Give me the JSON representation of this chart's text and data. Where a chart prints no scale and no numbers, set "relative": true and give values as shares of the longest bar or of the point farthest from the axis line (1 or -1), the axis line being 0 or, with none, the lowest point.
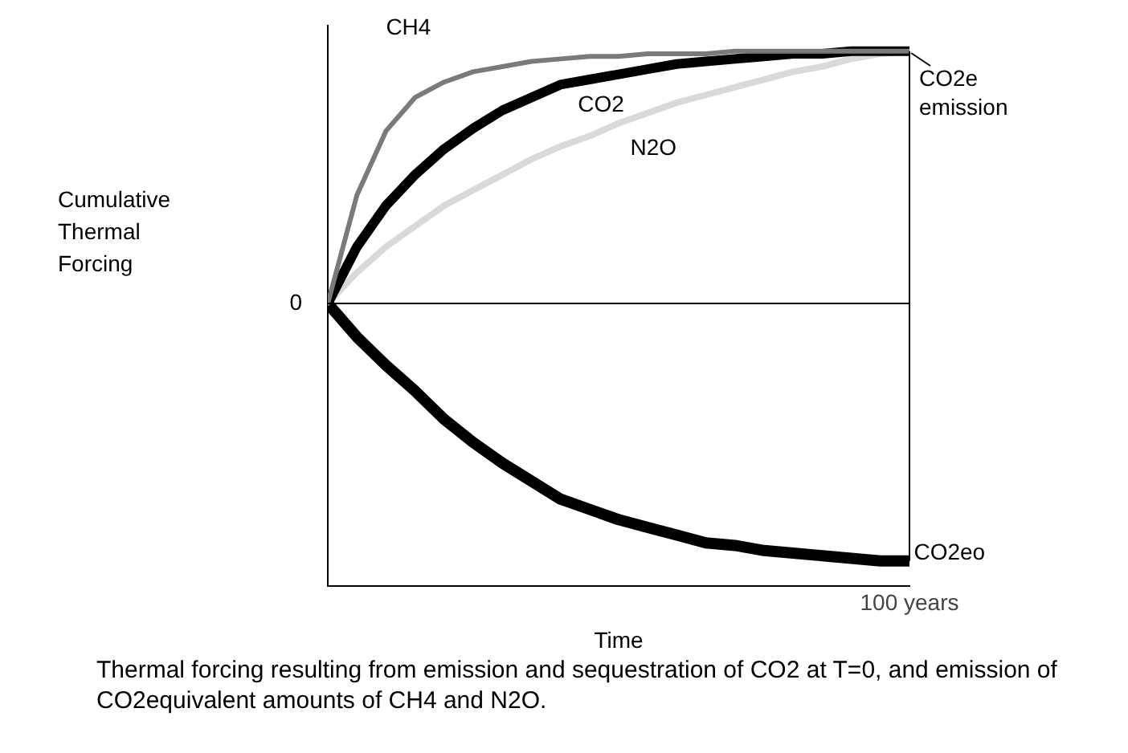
{
  "chart_data": {
    "type": "line",
    "relative": true,
    "xlabel": "Time",
    "categories": [
      null,
      null,
      null,
      null,
      null,
      null,
      null,
      null,
      null,
      null,
      null,
      null,
      null,
      null,
      null,
      null,
      null,
      null,
      null,
      null,
      null
    ],
    "series": [
      {
        "name": "CH4",
        "color": "#7a7a7a",
        "values": [
          0,
          0.42,
          0.67,
          0.8,
          0.86,
          0.9,
          0.92,
          0.94,
          0.95,
          0.96,
          0.96,
          0.97,
          0.97,
          0.97,
          0.98,
          0.98,
          0.98,
          0.98,
          0.98,
          0.98,
          0.98
        ]
      },
      {
        "name": "CO2",
        "color": "#000000",
        "values": [
          0,
          0.22,
          0.38,
          0.5,
          0.6,
          0.68,
          0.75,
          0.8,
          0.85,
          0.87,
          0.89,
          0.91,
          0.93,
          0.94,
          0.95,
          0.96,
          0.97,
          0.97,
          0.98,
          0.98,
          0.98
        ]
      },
      {
        "name": "N2O",
        "color": "#d9d9d9",
        "values": [
          0,
          0.12,
          0.22,
          0.3,
          0.38,
          0.44,
          0.5,
          0.56,
          0.61,
          0.65,
          0.7,
          0.74,
          0.78,
          0.81,
          0.84,
          0.87,
          0.9,
          0.92,
          0.95,
          0.97,
          0.98
        ]
      },
      {
        "name": "CO2eo",
        "color": "#000000",
        "values": [
          0,
          -0.13,
          -0.24,
          -0.34,
          -0.45,
          -0.54,
          -0.62,
          -0.69,
          -0.76,
          -0.8,
          -0.84,
          -0.87,
          -0.9,
          -0.93,
          -0.94,
          -0.96,
          -0.97,
          -0.98,
          -0.99,
          -1,
          -1
        ]
      }
    ],
    "annotations": [
      "0",
      "CO2e emission",
      "100 years",
      "Cumulative Thermal Forcing",
      "Thermal forcing resulting from emission and sequestration of CO2 at T=0, and emission of CO2equivalent amounts of CH4 and N2O."
    ],
    "grid": false,
    "legend": false,
    "marker": "none",
    "line_style": "solid"
  }
}
